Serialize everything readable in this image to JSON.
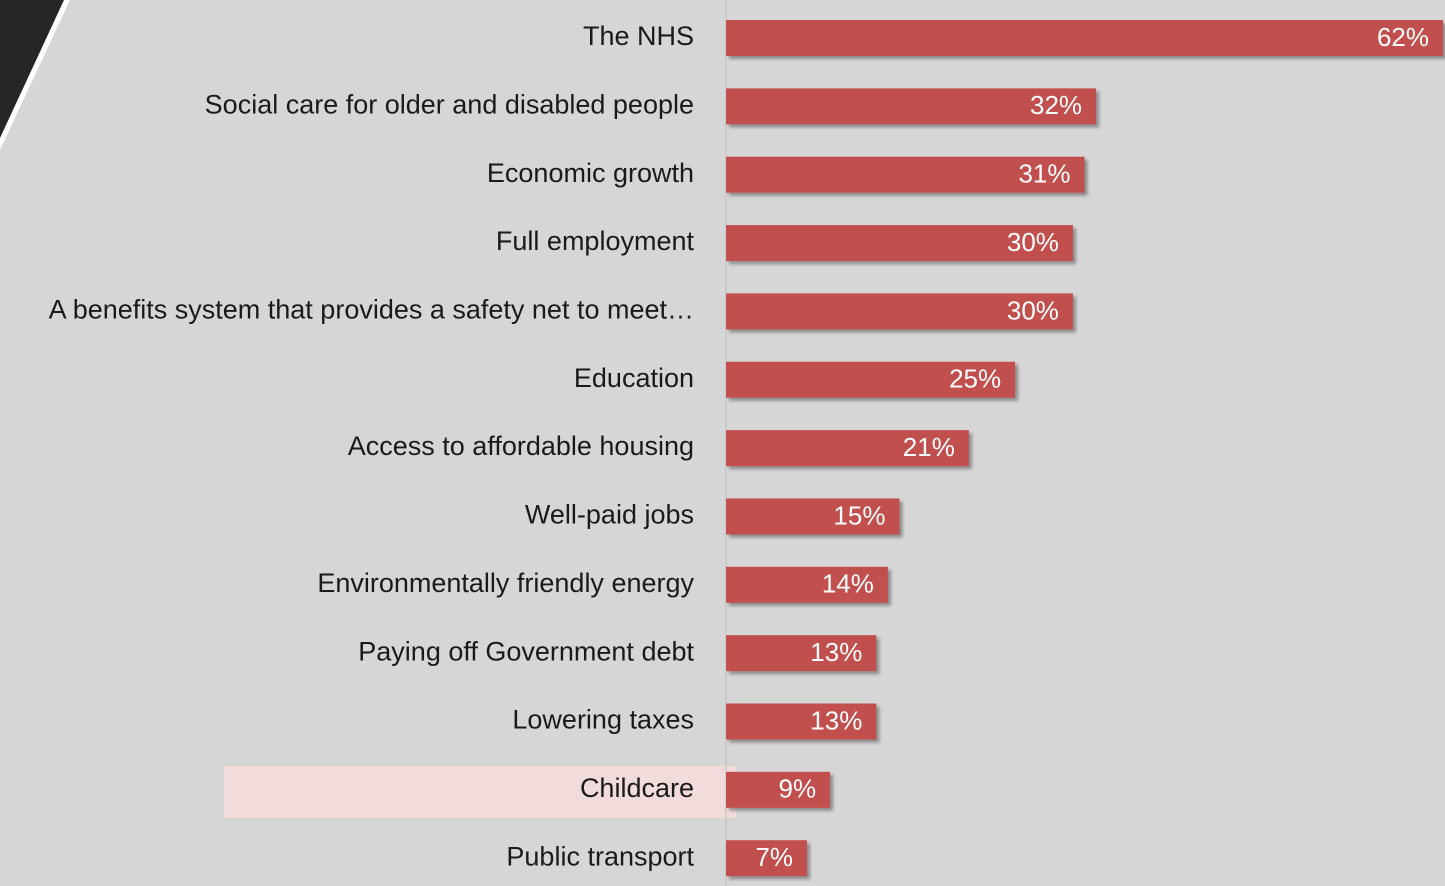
{
  "chart_data": {
    "type": "bar",
    "orientation": "horizontal",
    "color": "#c0504d",
    "categories": [
      "The NHS",
      "Social care for older and disabled people",
      "Economic growth",
      "Full employment",
      "A benefits system that provides a safety net to meet…",
      "Education",
      "Access to affordable housing",
      "Well-paid jobs",
      "Environmentally friendly energy",
      "Paying off Government debt",
      "Lowering taxes",
      "Childcare",
      "Public transport"
    ],
    "values": [
      62,
      32,
      31,
      30,
      30,
      25,
      21,
      15,
      14,
      13,
      13,
      9,
      7
    ],
    "value_labels": [
      "62%",
      "32%",
      "31%",
      "30%",
      "30%",
      "25%",
      "21%",
      "15%",
      "14%",
      "13%",
      "13%",
      "9%",
      "7%"
    ]
  }
}
